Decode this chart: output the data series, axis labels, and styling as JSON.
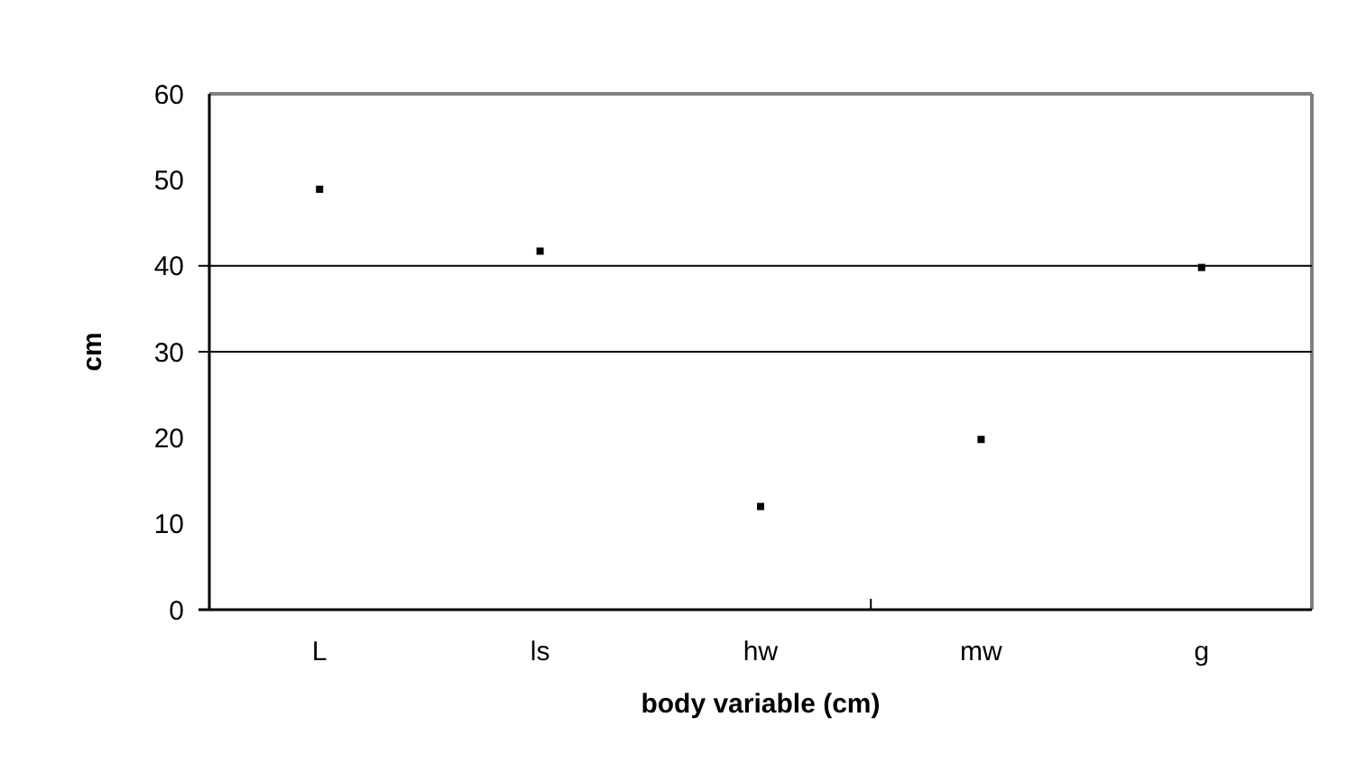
{
  "chart_data": {
    "type": "scatter",
    "xlabel": "body variable (cm)",
    "ylabel": "cm",
    "categories": [
      "L",
      "ls",
      "hw",
      "mw",
      "g"
    ],
    "series": [
      {
        "color": "#000000",
        "values": [
          48.9,
          41.7,
          12,
          19.8,
          39.8
        ]
      }
    ],
    "ylim": [
      0,
      60
    ],
    "yticks": [
      0,
      10,
      20,
      30,
      40,
      50,
      60
    ],
    "marker": "square",
    "ref_lines": [
      {
        "axis": "y",
        "value": 30,
        "color": "#000000"
      },
      {
        "axis": "y",
        "value": 40,
        "color": "#000000"
      }
    ]
  }
}
